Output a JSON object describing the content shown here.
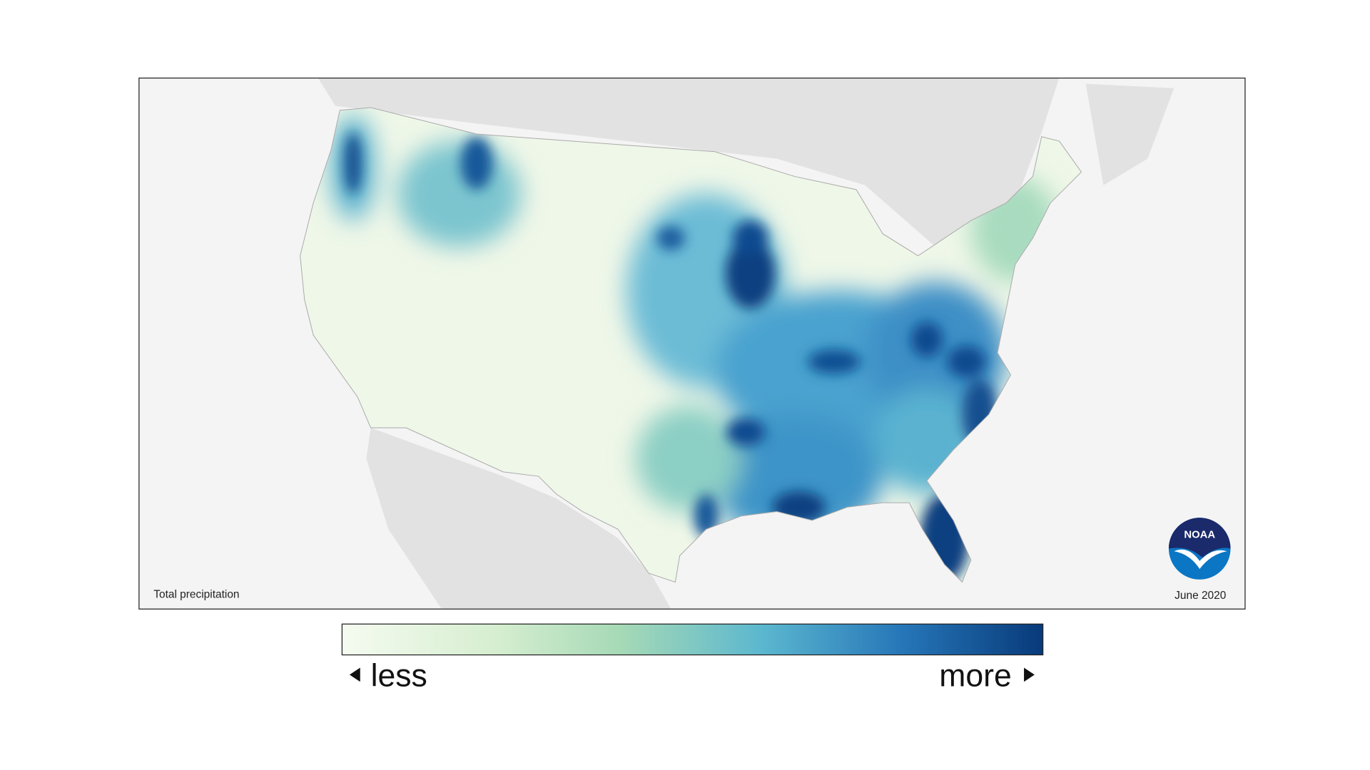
{
  "map": {
    "label": "Total precipitation",
    "date": "June 2020"
  },
  "legend": {
    "less": "less",
    "more": "more"
  },
  "logo": {
    "text": "NOAA"
  }
}
